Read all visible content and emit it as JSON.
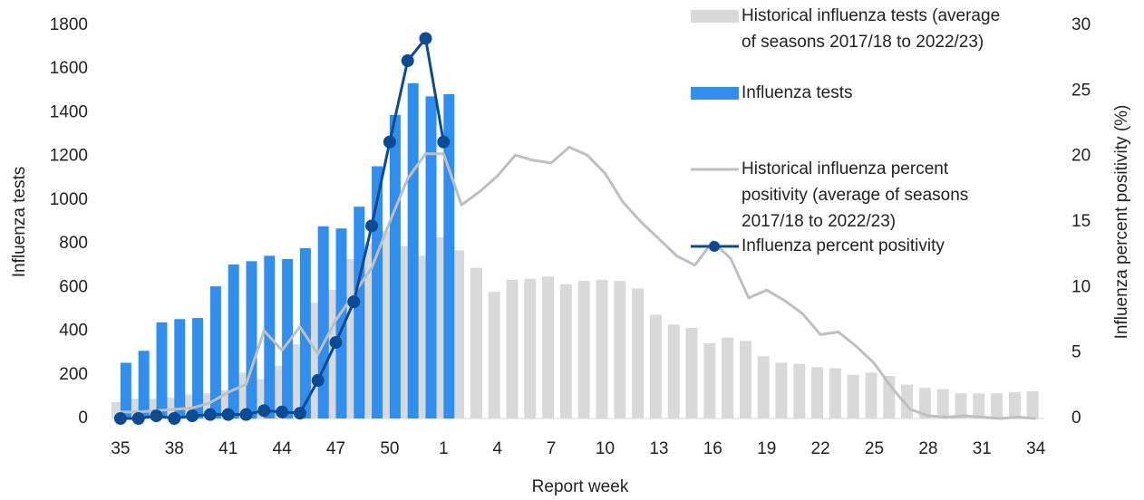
{
  "chart_data": {
    "type": "bar-line",
    "x_label": "Report week",
    "y_label": "Influenza tests",
    "y2_label": "Influenza percent positivity (%)",
    "categories": [
      35,
      null,
      null,
      38,
      null,
      null,
      41,
      null,
      null,
      44,
      null,
      null,
      47,
      null,
      null,
      50,
      null,
      null,
      1,
      null,
      null,
      4,
      null,
      null,
      7,
      null,
      null,
      10,
      null,
      null,
      13,
      null,
      null,
      16,
      null,
      null,
      19,
      null,
      null,
      22,
      null,
      null,
      25,
      null,
      null,
      28,
      null,
      null,
      31,
      null,
      null,
      34
    ],
    "ylim": [
      0,
      1800
    ],
    "yticks": [
      0,
      200,
      400,
      600,
      800,
      1000,
      1200,
      1400,
      1600,
      1800
    ],
    "y2lim": [
      0,
      30
    ],
    "y2ticks": [
      0,
      5,
      10,
      15,
      20,
      25,
      30
    ],
    "series": [
      {
        "name": "Historical influenza tests (average of seasons 2017/18 to 2022/23)",
        "kind": "bar",
        "color": "#d9d9d9",
        "values": [
          75,
          90,
          90,
          95,
          110,
          115,
          130,
          210,
          180,
          240,
          340,
          530,
          590,
          730,
          800,
          860,
          790,
          745,
          830,
          770,
          690,
          580,
          635,
          640,
          650,
          615,
          630,
          635,
          630,
          595,
          475,
          430,
          415,
          345,
          370,
          355,
          285,
          255,
          250,
          235,
          230,
          200,
          210,
          195,
          155,
          140,
          135,
          115,
          115,
          115,
          120,
          125
        ]
      },
      {
        "name": "Influenza tests",
        "kind": "bar",
        "color": "#2f8ff0",
        "values": [
          255,
          310,
          440,
          455,
          460,
          605,
          705,
          720,
          745,
          730,
          780,
          880,
          870,
          970,
          1155,
          1390,
          1535,
          1475,
          1485,
          null,
          null,
          null,
          null,
          null,
          null,
          null,
          null,
          null,
          null,
          null,
          null,
          null,
          null,
          null,
          null,
          null,
          null,
          null,
          null,
          null,
          null,
          null,
          null,
          null,
          null,
          null,
          null,
          null,
          null,
          null,
          null,
          null
        ]
      },
      {
        "name": "Historical influenza percent positivity (average of seasons 2017/18 to 2022/23)",
        "kind": "line",
        "axis": "y2",
        "color": "#bfbfbf",
        "values": [
          0.5,
          0.5,
          0.6,
          0.7,
          0.8,
          1.2,
          2.0,
          2.6,
          6.7,
          5.2,
          7.0,
          4.9,
          7.5,
          9.5,
          11.5,
          15.0,
          18.3,
          20.2,
          20.2,
          16.3,
          17.3,
          18.5,
          20.1,
          19.7,
          19.5,
          20.7,
          20.1,
          18.7,
          16.5,
          15.0,
          13.7,
          12.4,
          11.7,
          13.5,
          12.2,
          9.2,
          9.8,
          9.0,
          8.0,
          6.4,
          6.6,
          5.5,
          4.2,
          2.3,
          0.7,
          0.2,
          0.1,
          0.2,
          0.1,
          0.0,
          0.1,
          0.0
        ]
      },
      {
        "name": "Influenza percent positivity",
        "kind": "line",
        "axis": "y2",
        "color": "#0b4a94",
        "markers": true,
        "values": [
          0.0,
          0.0,
          0.2,
          0.0,
          0.2,
          0.3,
          0.3,
          0.3,
          0.6,
          0.5,
          0.4,
          2.9,
          5.8,
          8.9,
          14.7,
          21.1,
          27.3,
          29.0,
          21.1,
          null,
          null,
          null,
          null,
          null,
          null,
          null,
          null,
          null,
          null,
          null,
          null,
          null,
          null,
          null,
          null,
          null,
          null,
          null,
          null,
          null,
          null,
          null,
          null,
          null,
          null,
          null,
          null,
          null,
          null,
          null,
          null,
          null
        ]
      }
    ]
  }
}
